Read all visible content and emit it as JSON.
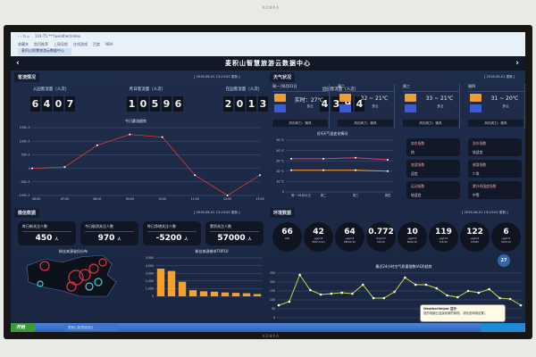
{
  "brand": "KONKA",
  "browser": {
    "tab": "麦积山智慧旅游云数据中心",
    "url": "119.75.***/weather/index",
    "bookmarks": [
      "收藏夹",
      "首页推荐",
      "上网导航",
      "在线游戏",
      "百度",
      "NBA"
    ]
  },
  "header": {
    "title": "麦积山智慧旅游云数据中心",
    "back": "‹",
    "forward": "›"
  },
  "visitors": {
    "section": "客流情况",
    "updated": "[ 2016-06-01 13:23:02 更新 ]",
    "counters": [
      {
        "label": "入园客流量（人次）",
        "value": "6407"
      },
      {
        "label": "昨日客流量（人次）",
        "value": "10596"
      },
      {
        "label": "在园客流量（人次）",
        "value": "2013"
      },
      {
        "label": "出园客流量（人次）",
        "value": "4394"
      }
    ]
  },
  "chart_data": [
    {
      "type": "line",
      "title": "今日客流趋势",
      "categories": [
        "06:00",
        "07:00",
        "08:00",
        "09:00",
        "10:00",
        "11:00",
        "12:00",
        "13:00"
      ],
      "values": [
        0,
        50,
        850,
        1250,
        1150,
        -250,
        -1000,
        -250
      ],
      "yticks": [
        "1500 人",
        "1000 人",
        "500 人",
        "0",
        "-500 人",
        "-1000 人"
      ],
      "ylim": [
        -1000,
        1500
      ],
      "color": "#e0392e"
    },
    {
      "type": "line",
      "title": "近4天气温变化情况",
      "categories": [
        "周一 06月01日",
        "周二",
        "周三",
        "周四"
      ],
      "series": [
        {
          "values": [
            32,
            32,
            33,
            31
          ],
          "color": "#e03c6e"
        },
        {
          "values": [
            21,
            21,
            21,
            20
          ],
          "color": "#e7923a"
        }
      ],
      "yticks": [
        "50 ℃",
        "40 ℃",
        "30 ℃",
        "20 ℃",
        "10 ℃",
        "0"
      ],
      "ylim": [
        0,
        50
      ]
    },
    {
      "type": "bar",
      "title": "粉丝来源城市TOP10",
      "values": [
        3600,
        3300,
        1900,
        800,
        650,
        600,
        500,
        450,
        400,
        300
      ],
      "yticks": [
        "5,000",
        "4,000",
        "3,000",
        "2,000",
        "1,000",
        "0"
      ],
      "ylim": [
        0,
        5000
      ],
      "color": "#f6a02c"
    },
    {
      "type": "line",
      "title": "最近24小时空气质量指数(AQI)趋势",
      "values": [
        70,
        90,
        240,
        155,
        130,
        135,
        140,
        135,
        185,
        110,
        110,
        145,
        225,
        185,
        185,
        165,
        125,
        115,
        150,
        140,
        160,
        110,
        105,
        70
      ],
      "yticks": [
        "250",
        "200",
        "150",
        "100",
        "50",
        "0"
      ],
      "ylim": [
        0,
        250
      ],
      "color": "#c8d84a"
    }
  ],
  "weather": {
    "section": "天气状况",
    "updated": "[ 2016-06-01 更新 ]",
    "days": [
      {
        "day": "周一 06月01日",
        "temp": "实时：27℃",
        "cond": "多云",
        "wind": "风向风力：微风"
      },
      {
        "day": "周二",
        "temp": "32 ~ 21℃",
        "cond": "多云",
        "wind": "风向风力：微风"
      },
      {
        "day": "周三",
        "temp": "33 ~ 21℃",
        "cond": "多云",
        "wind": "风向风力：微风"
      },
      {
        "day": "周四",
        "temp": "31 ~ 20℃",
        "cond": "多云",
        "wind": "风向风力：微风"
      }
    ],
    "indexes": [
      {
        "name": "穿衣指数",
        "value": "热"
      },
      {
        "name": "洗车指数",
        "value": "较适宜"
      },
      {
        "name": "旅游指数",
        "value": "适宜"
      },
      {
        "name": "感冒指数",
        "value": "少发"
      },
      {
        "name": "运动指数",
        "value": "较适宜"
      },
      {
        "name": "紫外线强度指数",
        "value": "中等"
      }
    ]
  },
  "wechat": {
    "section": "微信数据",
    "updated": "[ 2016-06-01 13:23:02 更新 ]",
    "unit": "人",
    "cards": [
      {
        "label": "昨日新关注人数",
        "value": "450"
      },
      {
        "label": "今日取消关注人数",
        "value": "970"
      },
      {
        "label": "昨日净增关注人数",
        "value": "-5200"
      },
      {
        "label": "累积关注人数",
        "value": "57000"
      }
    ],
    "map_title": "粉丝来源省份分布"
  },
  "environment": {
    "section": "环境数据",
    "updated": "[ 2016-06-01 13:23:02 更新 ]",
    "metrics": [
      {
        "value": "66",
        "unit": "",
        "name": "AQI"
      },
      {
        "value": "42",
        "unit": "μg/m3",
        "name": "PM2.5/1h"
      },
      {
        "value": "64",
        "unit": "μg/m3",
        "name": "PM10/1h"
      },
      {
        "value": "0.772",
        "unit": "mg/m3",
        "name": "CO/1h"
      },
      {
        "value": "10",
        "unit": "μg/m3",
        "name": "NO2/1h"
      },
      {
        "value": "119",
        "unit": "μg/m3",
        "name": "O3/1h"
      },
      {
        "value": "122",
        "unit": "μg/m3",
        "name": "O3/8h"
      },
      {
        "value": "6",
        "unit": "μg/m3",
        "name": "SO2/1h"
      }
    ],
    "bubble": "27"
  },
  "taskbar": {
    "start": "开始",
    "task": "麦积山智慧旅游云"
  },
  "popup": {
    "title": "WeatherHelper 提示",
    "text": "您的电脑已连接到新的网络，请检查网络设置。"
  },
  "colors": {
    "panel": "#1d2a45",
    "accent_red": "#e0392e",
    "bar": "#f6a02c",
    "aqi_line": "#c8d84a"
  }
}
